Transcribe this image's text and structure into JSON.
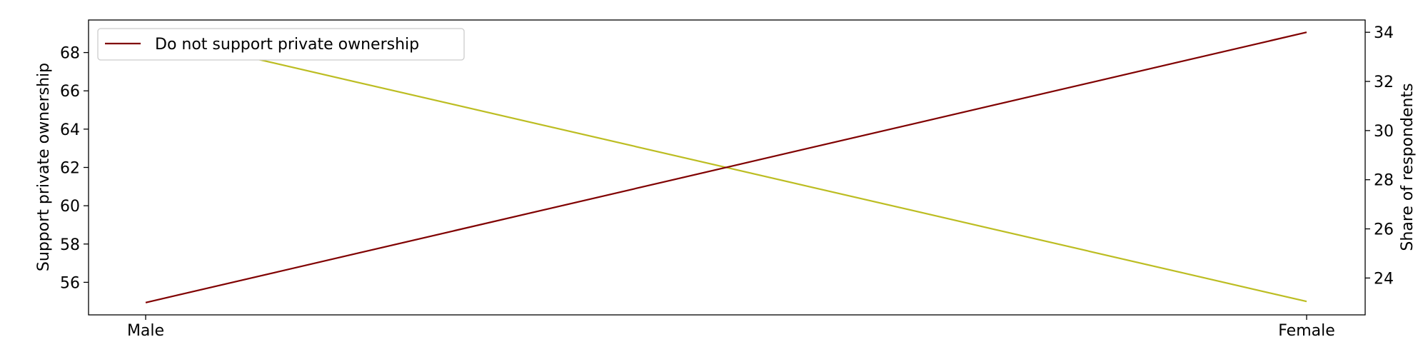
{
  "chart_data": {
    "type": "line",
    "categories": [
      "Male",
      "Female"
    ],
    "y_left": {
      "label": "Support private ownership",
      "range": [
        54.3,
        69.7
      ],
      "ticks": [
        56,
        58,
        60,
        62,
        64,
        66,
        68
      ]
    },
    "y_right": {
      "label": "Share of respondents",
      "range": [
        22.5,
        34.5
      ],
      "ticks": [
        24,
        26,
        28,
        30,
        32,
        34
      ]
    },
    "series": [
      {
        "name": "",
        "axis": "left",
        "values": [
          69,
          55
        ],
        "color": "#bcbd22"
      },
      {
        "name": "Do not support private ownership",
        "axis": "right",
        "values": [
          23,
          34
        ],
        "color": "#800000"
      }
    ],
    "legend": {
      "placement": "top-left",
      "entries": [
        "Do not support private ownership"
      ]
    },
    "grid": false
  }
}
